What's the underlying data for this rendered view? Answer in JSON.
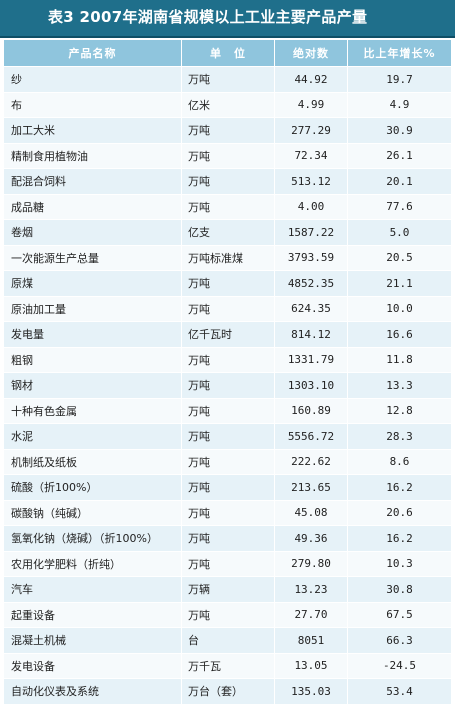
{
  "title": "表3  2007年湖南省规模以上工业主要产品产量",
  "colors": {
    "title_bg": "#1f6f8b",
    "header_bg": "#8fc5dd",
    "row_odd": "#e6f2f8",
    "row_even": "#f6fafc"
  },
  "table": {
    "headers": [
      "产品名称",
      "单　位",
      "绝对数",
      "比上年增长%"
    ],
    "rows": [
      {
        "name": "纱",
        "unit": "万吨",
        "abs": "44.92",
        "growth": "19.7"
      },
      {
        "name": "布",
        "unit": "亿米",
        "abs": "4.99",
        "growth": "4.9"
      },
      {
        "name": "加工大米",
        "unit": "万吨",
        "abs": "277.29",
        "growth": "30.9"
      },
      {
        "name": "精制食用植物油",
        "unit": "万吨",
        "abs": "72.34",
        "growth": "26.1"
      },
      {
        "name": "配混合饲料",
        "unit": "万吨",
        "abs": "513.12",
        "growth": "20.1"
      },
      {
        "name": "成品糖",
        "unit": "万吨",
        "abs": "4.00",
        "growth": "77.6"
      },
      {
        "name": "卷烟",
        "unit": "亿支",
        "abs": "1587.22",
        "growth": "5.0"
      },
      {
        "name": "一次能源生产总量",
        "unit": "万吨标准煤",
        "abs": "3793.59",
        "growth": "20.5"
      },
      {
        "name": "原煤",
        "unit": "万吨",
        "abs": "4852.35",
        "growth": "21.1"
      },
      {
        "name": "原油加工量",
        "unit": "万吨",
        "abs": "624.35",
        "growth": "10.0"
      },
      {
        "name": "发电量",
        "unit": "亿千瓦时",
        "abs": "814.12",
        "growth": "16.6"
      },
      {
        "name": "粗钢",
        "unit": "万吨",
        "abs": "1331.79",
        "growth": "11.8"
      },
      {
        "name": "钢材",
        "unit": "万吨",
        "abs": "1303.10",
        "growth": "13.3"
      },
      {
        "name": "十种有色金属",
        "unit": "万吨",
        "abs": "160.89",
        "growth": "12.8"
      },
      {
        "name": "水泥",
        "unit": "万吨",
        "abs": "5556.72",
        "growth": "28.3"
      },
      {
        "name": "机制纸及纸板",
        "unit": "万吨",
        "abs": "222.62",
        "growth": "8.6"
      },
      {
        "name": "硫酸（折100%）",
        "unit": "万吨",
        "abs": "213.65",
        "growth": "16.2"
      },
      {
        "name": "碳酸钠（纯碱）",
        "unit": "万吨",
        "abs": "45.08",
        "growth": "20.6"
      },
      {
        "name": "氢氧化钠（烧碱）（折100%）",
        "unit": "万吨",
        "abs": "49.36",
        "growth": "16.2"
      },
      {
        "name": "农用化学肥料（折纯）",
        "unit": "万吨",
        "abs": "279.80",
        "growth": "10.3"
      },
      {
        "name": "汽车",
        "unit": "万辆",
        "abs": "13.23",
        "growth": "30.8"
      },
      {
        "name": "起重设备",
        "unit": "万吨",
        "abs": "27.70",
        "growth": "67.5"
      },
      {
        "name": "混凝土机械",
        "unit": "台",
        "abs": "8051",
        "growth": "66.3"
      },
      {
        "name": "发电设备",
        "unit": "万千瓦",
        "abs": "13.05",
        "growth": "-24.5"
      },
      {
        "name": "自动化仪表及系统",
        "unit": "万台（套）",
        "abs": "135.03",
        "growth": "53.4"
      }
    ]
  }
}
